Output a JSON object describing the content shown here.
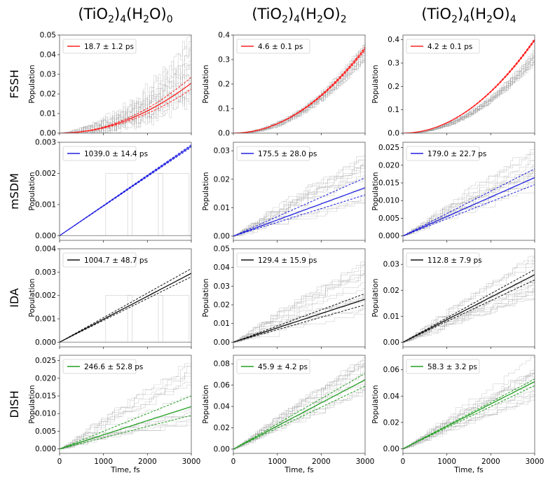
{
  "figure": {
    "columns": [
      "(TiO2)4(H2O)0",
      "(TiO2)4(H2O)2",
      "(TiO2)4(H2O)4"
    ],
    "rows": [
      "FSSH",
      "mSDM",
      "IDA",
      "DISH"
    ],
    "colors": {
      "FSSH": "#ff2020",
      "mSDM": "#2020e0",
      "IDA": "#111111",
      "DISH": "#22a022",
      "traces": "#9a9a9a"
    }
  },
  "chart_data": [
    {
      "type": "line",
      "method": "FSSH",
      "system": "(TiO2)4(H2O)0",
      "ylabel": "Population",
      "xlabel": "",
      "xlim": [
        0,
        3000
      ],
      "ylim": [
        0,
        0.05
      ],
      "yticks": [
        0,
        0.01,
        0.02,
        0.03,
        0.04,
        0.05
      ],
      "ytick_labels": [
        "0.00",
        "0.01",
        "0.02",
        "0.03",
        "0.04",
        "0.05"
      ],
      "xticks": [
        0,
        1000,
        2000,
        3000
      ],
      "show_xtick_labels": false,
      "legend": "18.7 ± 1.2 ps",
      "legend_loc": "upper left",
      "fit_shape": "quadratic",
      "fit_end": 0.0255,
      "fit_upper": 0.0285,
      "fit_lower": 0.0225,
      "traces_end_range": [
        0.015,
        0.05
      ]
    },
    {
      "type": "line",
      "method": "FSSH",
      "system": "(TiO2)4(H2O)2",
      "ylabel": "Population",
      "xlabel": "",
      "xlim": [
        0,
        3000
      ],
      "ylim": [
        0,
        0.4
      ],
      "yticks": [
        0,
        0.1,
        0.2,
        0.3,
        0.4
      ],
      "ytick_labels": [
        "0.0",
        "0.1",
        "0.2",
        "0.3",
        "0.4"
      ],
      "xticks": [
        0,
        1000,
        2000,
        3000
      ],
      "show_xtick_labels": false,
      "legend": "4.6 ± 0.1 ps",
      "legend_loc": "upper left",
      "fit_shape": "quadratic",
      "fit_end": 0.345,
      "fit_upper": 0.352,
      "fit_lower": 0.338,
      "traces_end_range": [
        0.3,
        0.38
      ]
    },
    {
      "type": "line",
      "method": "FSSH",
      "system": "(TiO2)4(H2O)4",
      "ylabel": "Population",
      "xlabel": "",
      "xlim": [
        0,
        3000
      ],
      "ylim": [
        0,
        0.42
      ],
      "yticks": [
        0,
        0.1,
        0.2,
        0.3,
        0.4
      ],
      "ytick_labels": [
        "0.0",
        "0.1",
        "0.2",
        "0.3",
        "0.4"
      ],
      "xticks": [
        0,
        1000,
        2000,
        3000
      ],
      "show_xtick_labels": false,
      "legend": "4.2 ± 0.1 ps",
      "legend_loc": "upper left",
      "fit_shape": "quadratic",
      "fit_end": 0.4,
      "fit_upper": 0.405,
      "fit_lower": 0.395,
      "traces_end_range": [
        0.3,
        0.36
      ]
    },
    {
      "type": "line",
      "method": "mSDM",
      "system": "(TiO2)4(H2O)0",
      "ylabel": "Population",
      "xlabel": "",
      "xlim": [
        0,
        3000
      ],
      "ylim": [
        -0.00015,
        0.003
      ],
      "yticks": [
        0,
        0.001,
        0.002,
        0.003
      ],
      "ytick_labels": [
        "0.000",
        "0.001",
        "0.002",
        "0.003"
      ],
      "xticks": [
        0,
        1000,
        2000,
        3000
      ],
      "show_xtick_labels": false,
      "legend": "1039.0 ± 14.4 ps",
      "legend_loc": "upper left",
      "fit_shape": "linear",
      "fit_end": 0.00288,
      "fit_upper": 0.00292,
      "fit_lower": 0.00284,
      "traces_end_range": [
        0,
        0
      ],
      "spike_level": 0.002
    },
    {
      "type": "line",
      "method": "mSDM",
      "system": "(TiO2)4(H2O)2",
      "ylabel": "Population",
      "xlabel": "",
      "xlim": [
        0,
        3000
      ],
      "ylim": [
        -0.0015,
        0.033
      ],
      "yticks": [
        0,
        0.01,
        0.02,
        0.03
      ],
      "ytick_labels": [
        "0.00",
        "0.01",
        "0.02",
        "0.03"
      ],
      "xticks": [
        0,
        1000,
        2000,
        3000
      ],
      "show_xtick_labels": false,
      "legend": "175.5 ± 28.0 ps",
      "legend_loc": "upper left",
      "fit_shape": "linear",
      "fit_end": 0.017,
      "fit_upper": 0.0205,
      "fit_lower": 0.0145,
      "traces_end_range": [
        0.008,
        0.03
      ]
    },
    {
      "type": "line",
      "method": "mSDM",
      "system": "(TiO2)4(H2O)4",
      "ylabel": "Population",
      "xlabel": "",
      "xlim": [
        0,
        3000
      ],
      "ylim": [
        -0.00125,
        0.0265
      ],
      "yticks": [
        0,
        0.005,
        0.01,
        0.015,
        0.02,
        0.025
      ],
      "ytick_labels": [
        "0.000",
        "0.005",
        "0.010",
        "0.015",
        "0.020",
        "0.025"
      ],
      "xticks": [
        0,
        1000,
        2000,
        3000
      ],
      "show_xtick_labels": false,
      "legend": "179.0 ± 22.7 ps",
      "legend_loc": "upper left",
      "fit_shape": "linear",
      "fit_end": 0.0165,
      "fit_upper": 0.019,
      "fit_lower": 0.0145,
      "traces_end_range": [
        0.01,
        0.025
      ]
    },
    {
      "type": "line",
      "method": "IDA",
      "system": "(TiO2)4(H2O)0",
      "ylabel": "Population",
      "xlabel": "",
      "xlim": [
        0,
        3000
      ],
      "ylim": [
        -0.0002,
        0.004
      ],
      "yticks": [
        0,
        0.001,
        0.002,
        0.003,
        0.004
      ],
      "ytick_labels": [
        "0.000",
        "0.001",
        "0.002",
        "0.003",
        "0.004"
      ],
      "xticks": [
        0,
        1000,
        2000,
        3000
      ],
      "show_xtick_labels": false,
      "legend": "1004.7 ± 48.7 ps",
      "legend_loc": "upper left",
      "fit_shape": "linear",
      "fit_end": 0.00295,
      "fit_upper": 0.00315,
      "fit_lower": 0.0028,
      "traces_end_range": [
        0,
        0
      ],
      "spike_level": 0.002
    },
    {
      "type": "line",
      "method": "IDA",
      "system": "(TiO2)4(H2O)2",
      "ylabel": "Population",
      "xlabel": "",
      "xlim": [
        0,
        3000
      ],
      "ylim": [
        -0.0025,
        0.05
      ],
      "yticks": [
        0,
        0.01,
        0.02,
        0.03,
        0.04,
        0.05
      ],
      "ytick_labels": [
        "0.00",
        "0.01",
        "0.02",
        "0.03",
        "0.04",
        "0.05"
      ],
      "xticks": [
        0,
        1000,
        2000,
        3000
      ],
      "show_xtick_labels": false,
      "legend": "129.4 ± 15.9 ps",
      "legend_loc": "upper left",
      "fit_shape": "linear",
      "fit_end": 0.023,
      "fit_upper": 0.026,
      "fit_lower": 0.02,
      "traces_end_range": [
        0.01,
        0.045
      ]
    },
    {
      "type": "line",
      "method": "IDA",
      "system": "(TiO2)4(H2O)4",
      "ylabel": "Population",
      "xlabel": "",
      "xlim": [
        0,
        3000
      ],
      "ylim": [
        -0.0018,
        0.036
      ],
      "yticks": [
        0,
        0.01,
        0.02,
        0.03
      ],
      "ytick_labels": [
        "0.00",
        "0.01",
        "0.02",
        "0.03"
      ],
      "xticks": [
        0,
        1000,
        2000,
        3000
      ],
      "show_xtick_labels": false,
      "legend": "112.8 ± 7.9 ps",
      "legend_loc": "upper left",
      "fit_shape": "linear",
      "fit_end": 0.026,
      "fit_upper": 0.028,
      "fit_lower": 0.024,
      "traces_end_range": [
        0.015,
        0.035
      ]
    },
    {
      "type": "line",
      "method": "DISH",
      "system": "(TiO2)4(H2O)0",
      "ylabel": "Population",
      "xlabel": "Time, fs",
      "xlim": [
        0,
        3000
      ],
      "ylim": [
        -0.00125,
        0.0265
      ],
      "yticks": [
        0,
        0.005,
        0.01,
        0.015,
        0.02,
        0.025
      ],
      "ytick_labels": [
        "0.000",
        "0.005",
        "0.010",
        "0.015",
        "0.020",
        "0.025"
      ],
      "xticks": [
        0,
        1000,
        2000,
        3000
      ],
      "show_xtick_labels": true,
      "legend": "246.6 ± 52.8 ps",
      "legend_loc": "upper left",
      "fit_shape": "linear",
      "fit_end": 0.012,
      "fit_upper": 0.015,
      "fit_lower": 0.0095,
      "traces_end_range": [
        0.005,
        0.025
      ]
    },
    {
      "type": "line",
      "method": "DISH",
      "system": "(TiO2)4(H2O)2",
      "ylabel": "Population",
      "xlabel": "Time, fs",
      "xlim": [
        0,
        3000
      ],
      "ylim": [
        -0.004,
        0.088
      ],
      "yticks": [
        0,
        0.02,
        0.04,
        0.06,
        0.08
      ],
      "ytick_labels": [
        "0.00",
        "0.02",
        "0.04",
        "0.06",
        "0.08"
      ],
      "xticks": [
        0,
        1000,
        2000,
        3000
      ],
      "show_xtick_labels": true,
      "legend": "45.9 ± 4.2 ps",
      "legend_loc": "upper left",
      "fit_shape": "linear",
      "fit_end": 0.065,
      "fit_upper": 0.071,
      "fit_lower": 0.059,
      "traces_end_range": [
        0.045,
        0.085
      ]
    },
    {
      "type": "line",
      "method": "DISH",
      "system": "(TiO2)4(H2O)4",
      "ylabel": "Population",
      "xlabel": "Time, fs",
      "xlim": [
        0,
        3000
      ],
      "ylim": [
        -0.0035,
        0.071
      ],
      "yticks": [
        0,
        0.02,
        0.04,
        0.06
      ],
      "ytick_labels": [
        "0.00",
        "0.02",
        "0.04",
        "0.06"
      ],
      "xticks": [
        0,
        1000,
        2000,
        3000
      ],
      "show_xtick_labels": true,
      "legend": "58.3 ± 3.2 ps",
      "legend_loc": "upper left",
      "fit_shape": "linear",
      "fit_end": 0.051,
      "fit_upper": 0.053,
      "fit_lower": 0.048,
      "traces_end_range": [
        0.035,
        0.068
      ]
    }
  ]
}
